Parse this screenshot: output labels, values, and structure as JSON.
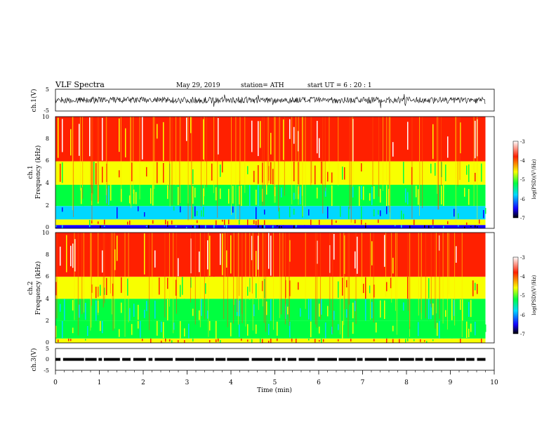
{
  "header": {
    "title": "VLF  Spectra",
    "date": "May 29, 2019",
    "station": "station= ATH",
    "start": "start  UT  =   6  : 20 : 1"
  },
  "colors": {
    "trace": "#000000",
    "background": "#ffffff",
    "colormap": [
      "#000000",
      "#1400ff",
      "#00d8ff",
      "#00ff40",
      "#f8ff00",
      "#ff2000",
      "#ffffff"
    ]
  },
  "chart_data": [
    {
      "type": "line",
      "name": "ch1-waveform",
      "ylabel": "ch.1(V)",
      "ylim": [
        -5,
        5
      ],
      "y_ticks": [
        "5",
        "-5"
      ],
      "x": [
        0,
        1,
        2,
        3,
        4,
        5,
        6,
        7,
        8,
        9,
        9.8
      ],
      "values": [
        0,
        0.2,
        -0.1,
        0.1,
        0,
        -0.2,
        0.1,
        0,
        0.1,
        -0.1,
        0
      ],
      "approx_amplitude_band": [
        -1.5,
        1.5
      ],
      "xlim": [
        0,
        10
      ]
    },
    {
      "type": "heatmap",
      "name": "ch1-spectrogram",
      "ylabel": "Frequency  (kHz)",
      "ylabel_prefix": "ch.1",
      "ylim": [
        0,
        10
      ],
      "y_ticks": [
        "0",
        "2",
        "4",
        "6",
        "8",
        "10"
      ],
      "xlim": [
        0,
        10
      ],
      "data_x_end": 9.8,
      "colorbar": {
        "label": "log(PSD)(V²/Hz)",
        "range": [
          -7,
          -3
        ],
        "ticks": [
          "-3",
          "-4",
          "-5",
          "-6",
          "-7"
        ]
      },
      "bands_log_psd": [
        {
          "f_low": 0.0,
          "f_high": 0.3,
          "value": -6.5
        },
        {
          "f_low": 0.3,
          "f_high": 0.8,
          "value": -4.2
        },
        {
          "f_low": 0.8,
          "f_high": 2.0,
          "value": -5.7
        },
        {
          "f_low": 2.0,
          "f_high": 3.9,
          "value": -5.0
        },
        {
          "f_low": 3.9,
          "f_high": 6.0,
          "value": -4.4
        },
        {
          "f_low": 6.0,
          "f_high": 10.0,
          "value": -3.7
        }
      ]
    },
    {
      "type": "heatmap",
      "name": "ch2-spectrogram",
      "ylabel": "Frequency  (kHz)",
      "ylabel_prefix": "ch.2",
      "ylim": [
        0,
        10
      ],
      "y_ticks": [
        "0",
        "2",
        "4",
        "6",
        "8",
        "10"
      ],
      "xlim": [
        0,
        10
      ],
      "data_x_end": 9.8,
      "colorbar": {
        "label": "log(PSD)(V²/Hz)",
        "range": [
          -7,
          -3
        ],
        "ticks": [
          "-3",
          "-4",
          "-5",
          "-6",
          "-7"
        ]
      },
      "bands_log_psd": [
        {
          "f_low": 0.0,
          "f_high": 0.4,
          "value": -4.3
        },
        {
          "f_low": 0.4,
          "f_high": 2.0,
          "value": -5.1
        },
        {
          "f_low": 2.0,
          "f_high": 4.0,
          "value": -5.3
        },
        {
          "f_low": 4.0,
          "f_high": 6.0,
          "value": -4.6
        },
        {
          "f_low": 6.0,
          "f_high": 10.0,
          "value": -3.7
        }
      ]
    },
    {
      "type": "line",
      "name": "ch3-signal",
      "ylabel": "ch.3(V)",
      "ylim": [
        -5,
        5
      ],
      "y_ticks": [
        "5",
        "0",
        "-5"
      ],
      "xlim": [
        0,
        10
      ],
      "x": [
        0,
        9.8
      ],
      "values": [
        0,
        0
      ],
      "xlabel": "Time  (min)",
      "x_ticks": [
        "0",
        "1",
        "2",
        "3",
        "4",
        "5",
        "6",
        "7",
        "8",
        "9",
        "10"
      ]
    }
  ]
}
